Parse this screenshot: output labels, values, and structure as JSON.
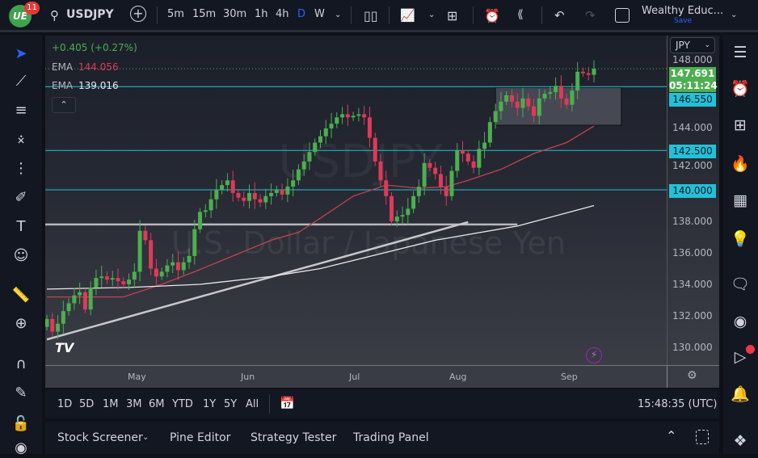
{
  "header": {
    "notifications": "11",
    "logo_text": "UE",
    "symbol": "USDJPY",
    "intervals": [
      "5m",
      "15m",
      "30m",
      "1h",
      "4h",
      "D",
      "W"
    ],
    "active_interval": "D",
    "layout_name": "Wealthy Educ...",
    "save_label": "Save"
  },
  "legend": {
    "change": "+0.405 (+0.27%)",
    "ema_label": "EMA",
    "ema1_value": "144.056",
    "ema2_value": "139.016"
  },
  "watermark": {
    "symbol": "USDJPY",
    "description": "U.S. Dollar / Japanese Yen"
  },
  "price_axis": {
    "currency": "JPY",
    "ticks": [
      "148.000",
      "144.000",
      "142.000",
      "138.000",
      "136.000",
      "134.000",
      "132.000",
      "130.000"
    ],
    "last_price": "147.691",
    "countdown": "05:11:24",
    "levels": [
      "146.550",
      "142.500",
      "140.000"
    ]
  },
  "time_axis": {
    "labels": [
      "May",
      "Jun",
      "Jul",
      "Aug",
      "Sep"
    ]
  },
  "range_bar": {
    "ranges": [
      "1D",
      "5D",
      "1M",
      "3M",
      "6M",
      "YTD",
      "1Y",
      "5Y",
      "All"
    ],
    "clock": "15:48:35 (UTC)"
  },
  "bottom_panel": {
    "tabs": [
      "Stock Screener",
      "Pine Editor",
      "Strategy Tester",
      "Trading Panel"
    ]
  },
  "colors": {
    "up": "#4caf50",
    "down": "#e0395a",
    "level": "#22c1d8",
    "ema1": "#c0444e",
    "ema2": "#e8e8e8",
    "accent": "#2962ff"
  },
  "chart_data": {
    "type": "candlestick",
    "symbol": "USDJPY",
    "timeframe": "D",
    "ylim": [
      129.5,
      148.8
    ],
    "x_month_labels": [
      "May",
      "Jun",
      "Jul",
      "Aug",
      "Sep"
    ],
    "closes": [
      131.8,
      131.0,
      131.5,
      132.3,
      132.8,
      133.3,
      133.5,
      132.4,
      133.8,
      134.4,
      134.5,
      134.3,
      134.4,
      134.2,
      134.0,
      134.3,
      134.8,
      137.4,
      136.8,
      135.0,
      134.5,
      134.8,
      135.2,
      135.4,
      134.9,
      135.4,
      135.8,
      137.5,
      138.6,
      138.7,
      139.4,
      140.0,
      140.3,
      140.6,
      139.8,
      139.5,
      139.3,
      139.8,
      139.4,
      139.2,
      139.6,
      139.8,
      140.0,
      139.7,
      140.2,
      140.6,
      141.3,
      141.8,
      142.4,
      143.0,
      143.4,
      143.9,
      144.2,
      144.6,
      144.8,
      144.6,
      144.7,
      144.8,
      144.6,
      143.3,
      141.8,
      140.6,
      139.6,
      138.0,
      138.3,
      138.4,
      138.8,
      139.6,
      140.2,
      141.7,
      141.4,
      141.0,
      140.2,
      139.6,
      141.2,
      142.5,
      142.3,
      141.8,
      141.4,
      142.6,
      143.0,
      144.3,
      145.0,
      145.6,
      146.0,
      145.6,
      145.2,
      145.8,
      145.3,
      144.7,
      145.8,
      146.1,
      146.2,
      146.6,
      145.8,
      145.4,
      146.3,
      147.5,
      147.4,
      147.3,
      147.691
    ],
    "ema_series": [
      {
        "name": "EMA",
        "value": "144.056",
        "points": [
          [
            0,
            133.2
          ],
          [
            14,
            133.2
          ],
          [
            21,
            134.0
          ],
          [
            27,
            134.8
          ],
          [
            34,
            135.8
          ],
          [
            41,
            136.8
          ],
          [
            46,
            137.3
          ],
          [
            50,
            138.2
          ],
          [
            56,
            139.6
          ],
          [
            62,
            140.3
          ],
          [
            68,
            140.1
          ],
          [
            73,
            140.2
          ],
          [
            77,
            140.6
          ],
          [
            83,
            141.3
          ],
          [
            89,
            142.3
          ],
          [
            95,
            143.0
          ],
          [
            100,
            144.05
          ]
        ]
      },
      {
        "name": "EMA",
        "value": "139.016",
        "points": [
          [
            0,
            133.7
          ],
          [
            15,
            133.8
          ],
          [
            28,
            134.0
          ],
          [
            41,
            134.5
          ],
          [
            50,
            135.0
          ],
          [
            71,
            136.8
          ],
          [
            86,
            137.7
          ],
          [
            100,
            139.0
          ]
        ]
      }
    ],
    "horizontal_levels": [
      146.55,
      142.5,
      140.0
    ],
    "support_line": 137.8,
    "trendline": [
      [
        0,
        130.5
      ],
      [
        77,
        137.95
      ]
    ],
    "range_box": {
      "from_index": 82,
      "to_index": 105,
      "top": 146.5,
      "bottom": 144.1
    },
    "last_price": 147.691
  }
}
